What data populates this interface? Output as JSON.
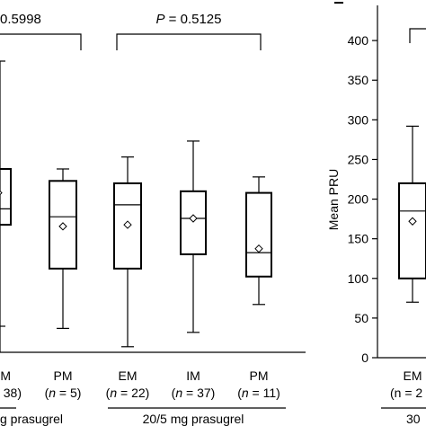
{
  "chart_data": [
    {
      "type": "box",
      "comparisons": [
        {
          "text_italic": "",
          "text_value": "0.5998"
        },
        {
          "text_italic": "P",
          "text_value": " = 0.5125"
        }
      ],
      "groups": [
        {
          "name": "...",
          "dose_label": "g prasugrel",
          "boxes": [
            {
              "category": "M",
              "n_label": "38)",
              "whisker_low": null,
              "q1": 160,
              "median": 180,
              "q3": 230,
              "whisker_high": null,
              "mean": 200
            },
            {
              "category": "PM",
              "n_prefix": "(",
              "n_var": "n",
              "n_suffix": " = 5)",
              "whisker_low": 30,
              "q1": 105,
              "median": 170,
              "q3": 215,
              "whisker_high": 230,
              "mean": 158
            }
          ]
        },
        {
          "name": "20/5 mg prasugrel",
          "dose_label": "20/5 mg prasugrel",
          "boxes": [
            {
              "category": "EM",
              "n_prefix": "(",
              "n_var": "n",
              "n_suffix": " = 22)",
              "whisker_low": 7,
              "q1": 105,
              "median": 185,
              "q3": 212,
              "whisker_high": 245,
              "mean": 160
            },
            {
              "category": "IM",
              "n_prefix": "(",
              "n_var": "n",
              "n_suffix": " = 37)",
              "whisker_low": 25,
              "q1": 123,
              "median": 168,
              "q3": 202,
              "whisker_high": 265,
              "mean": 168
            },
            {
              "category": "PM",
              "n_prefix": "(",
              "n_var": "n",
              "n_suffix": " = 11)",
              "whisker_low": 60,
              "q1": 95,
              "median": 125,
              "q3": 200,
              "whisker_high": 220,
              "mean": 130
            }
          ]
        }
      ]
    },
    {
      "type": "box",
      "ylabel": "Mean PRU",
      "ylim": [
        0,
        450
      ],
      "yticks": [
        0,
        50,
        100,
        150,
        200,
        250,
        300,
        350,
        400
      ],
      "categories": [
        "EM"
      ],
      "n_labels": [
        "(n = 2"
      ],
      "dose_label": "30",
      "boxes": [
        {
          "category": "EM",
          "whisker_low": 70,
          "q1": 100,
          "median": 185,
          "q3": 220,
          "whisker_high": 292,
          "mean": 172
        }
      ]
    }
  ]
}
